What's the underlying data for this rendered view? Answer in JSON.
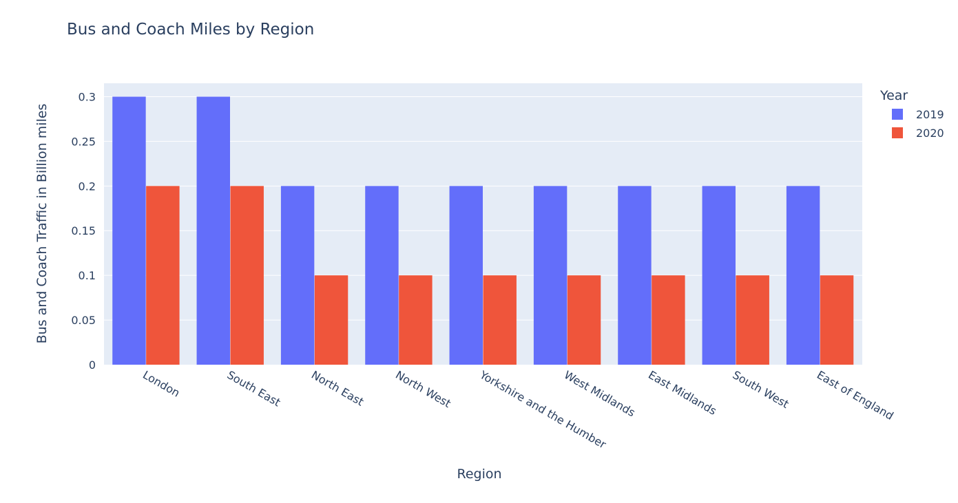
{
  "chart_data": {
    "type": "bar",
    "title": "Bus and Coach Miles by Region",
    "xlabel": "Region",
    "ylabel": "Bus and Coach Traffic in Billion miles",
    "ylim": [
      0,
      0.3
    ],
    "yticks": [
      "0",
      "0.05",
      "0.1",
      "0.15",
      "0.2",
      "0.25",
      "0.3"
    ],
    "grid": true,
    "legend_position": "right",
    "legend_title": "Year",
    "categories": [
      "London",
      "South East",
      "North East",
      "North West",
      "Yorkshire and the Humber",
      "West Midlands",
      "East Midlands",
      "South West",
      "East of England"
    ],
    "series": [
      {
        "name": "2019",
        "color": "#636efa",
        "values": [
          0.3,
          0.3,
          0.2,
          0.2,
          0.2,
          0.2,
          0.2,
          0.2,
          0.2
        ]
      },
      {
        "name": "2020",
        "color": "#ef553b",
        "values": [
          0.2,
          0.2,
          0.1,
          0.1,
          0.1,
          0.1,
          0.1,
          0.1,
          0.1
        ]
      }
    ],
    "plot_background": "#e5ecf6",
    "gridline_color": "#ffffff"
  }
}
